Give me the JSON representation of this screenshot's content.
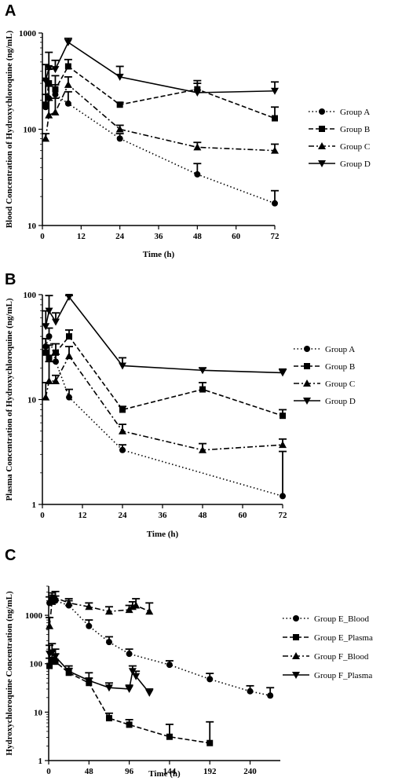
{
  "chart_data": [
    {
      "panel": "A",
      "type": "line",
      "title": "",
      "xlabel": "Time (h)",
      "ylabel": "Blood Concentration of Hydroxychloroquine (ng/mL)",
      "yscale": "log",
      "xlim": [
        0,
        72
      ],
      "ylim": [
        10,
        1000
      ],
      "xticks": [
        "0",
        "12",
        "24",
        "36",
        "48",
        "60",
        "72"
      ],
      "yticks": [
        "10",
        "100",
        "1000"
      ],
      "legend_position": "right",
      "series": [
        {
          "name": "Group A",
          "marker": "circle",
          "dash": "dotted",
          "x": [
            1,
            2,
            4,
            8,
            24,
            48,
            72
          ],
          "y": [
            170,
            210,
            230,
            185,
            80,
            34,
            17
          ],
          "err": [
            60,
            70,
            60,
            60,
            10,
            10,
            6
          ]
        },
        {
          "name": "Group B",
          "marker": "square",
          "dash": "dashed",
          "x": [
            1,
            2,
            4,
            8,
            24,
            48,
            72
          ],
          "y": [
            180,
            300,
            260,
            450,
            180,
            260,
            130
          ],
          "err": [
            140,
            120,
            100,
            80,
            10,
            40,
            40
          ]
        },
        {
          "name": "Group C",
          "marker": "triangle-up",
          "dash": "dashdot",
          "x": [
            1,
            2,
            4,
            8,
            24,
            48,
            72
          ],
          "y": [
            80,
            140,
            150,
            290,
            100,
            65,
            60
          ],
          "err": [
            10,
            60,
            60,
            60,
            10,
            8,
            10
          ]
        },
        {
          "name": "Group D",
          "marker": "triangle-down",
          "dash": "solid",
          "x": [
            1,
            2,
            4,
            8,
            24,
            48,
            72
          ],
          "y": [
            320,
            430,
            420,
            800,
            350,
            240,
            250
          ],
          "err": [
            150,
            200,
            100,
            80,
            100,
            80,
            60
          ]
        }
      ]
    },
    {
      "panel": "B",
      "type": "line",
      "title": "",
      "xlabel": "Time (h)",
      "ylabel": "Plasma Concentration of Hydroxychloroquine (ng/mL)",
      "yscale": "log",
      "xlim": [
        0,
        72
      ],
      "ylim": [
        1,
        100
      ],
      "xticks": [
        "0",
        "12",
        "24",
        "36",
        "48",
        "60",
        "72"
      ],
      "yticks": [
        "1",
        "10",
        "100"
      ],
      "legend_position": "right",
      "series": [
        {
          "name": "Group A",
          "marker": "circle",
          "dash": "dotted",
          "x": [
            1,
            2,
            4,
            8,
            24,
            72
          ],
          "y": [
            32,
            40,
            23,
            10.5,
            3.3,
            1.2
          ],
          "err": [
            6,
            8,
            4,
            2,
            0.4,
            2
          ]
        },
        {
          "name": "Group B",
          "marker": "square",
          "dash": "dashed",
          "x": [
            1,
            2,
            4,
            8,
            24,
            48,
            72
          ],
          "y": [
            28,
            25,
            28,
            40,
            8,
            12.5,
            7
          ],
          "err": [
            10,
            8,
            6,
            6,
            0.6,
            2,
            1
          ]
        },
        {
          "name": "Group C",
          "marker": "triangle-up",
          "dash": "dashdot",
          "x": [
            1,
            2,
            4,
            8,
            24,
            48,
            72
          ],
          "y": [
            10.5,
            15,
            15,
            26,
            5,
            3.3,
            3.7
          ],
          "err": [
            4,
            8,
            2,
            6,
            0.8,
            0.5,
            0.5
          ]
        },
        {
          "name": "Group D",
          "marker": "triangle-down",
          "dash": "solid",
          "x": [
            1,
            2,
            4,
            8,
            24,
            48,
            72
          ],
          "y": [
            50,
            70,
            55,
            95,
            21,
            19,
            18
          ],
          "err": [
            20,
            35,
            12,
            25,
            4,
            1,
            1.5
          ]
        }
      ]
    },
    {
      "panel": "C",
      "type": "line",
      "title": "",
      "xlabel": "Time (h)",
      "ylabel": "Hydroxychloroquine Concentration (ng/mL)",
      "yscale": "log",
      "xlim": [
        0,
        276
      ],
      "ylim": [
        1,
        4000
      ],
      "xticks": [
        "0",
        "48",
        "96",
        "144",
        "192",
        "240"
      ],
      "yticks": [
        "1",
        "10",
        "100",
        "1000"
      ],
      "legend_position": "right",
      "series": [
        {
          "name": "Group E_Blood",
          "marker": "circle",
          "dash": "dotted",
          "x": [
            1,
            4,
            8,
            24,
            48,
            72,
            96,
            144,
            192,
            240,
            264
          ],
          "y": [
            1800,
            2200,
            2000,
            1600,
            600,
            280,
            160,
            95,
            48,
            27,
            22
          ],
          "err": [
            600,
            700,
            500,
            400,
            200,
            80,
            40,
            20,
            15,
            8,
            10
          ]
        },
        {
          "name": "Group E_Plasma",
          "marker": "square",
          "dash": "dashed",
          "x": [
            1,
            4,
            8,
            24,
            48,
            72,
            96,
            144,
            192
          ],
          "y": [
            90,
            120,
            110,
            65,
            40,
            7.5,
            5.5,
            3.1,
            2.3
          ],
          "err": [
            40,
            60,
            50,
            15,
            10,
            2,
            1.5,
            2.5,
            4
          ]
        },
        {
          "name": "Group F_Blood",
          "marker": "triangle-up",
          "dash": "dashdot",
          "x": [
            1,
            4,
            8,
            24,
            48,
            72,
            96,
            100,
            104,
            120
          ],
          "y": [
            600,
            1900,
            2300,
            1800,
            1500,
            1200,
            1300,
            1500,
            1600,
            1200
          ],
          "err": [
            300,
            700,
            800,
            400,
            300,
            300,
            300,
            400,
            600,
            600
          ]
        },
        {
          "name": "Group F_Plasma",
          "marker": "triangle-down",
          "dash": "solid",
          "x": [
            1,
            4,
            8,
            24,
            48,
            72,
            96,
            100,
            104,
            120
          ],
          "y": [
            160,
            170,
            140,
            70,
            45,
            32,
            30,
            70,
            55,
            25
          ],
          "err": [
            80,
            90,
            60,
            20,
            20,
            8,
            6,
            20,
            15,
            5
          ]
        }
      ]
    }
  ]
}
